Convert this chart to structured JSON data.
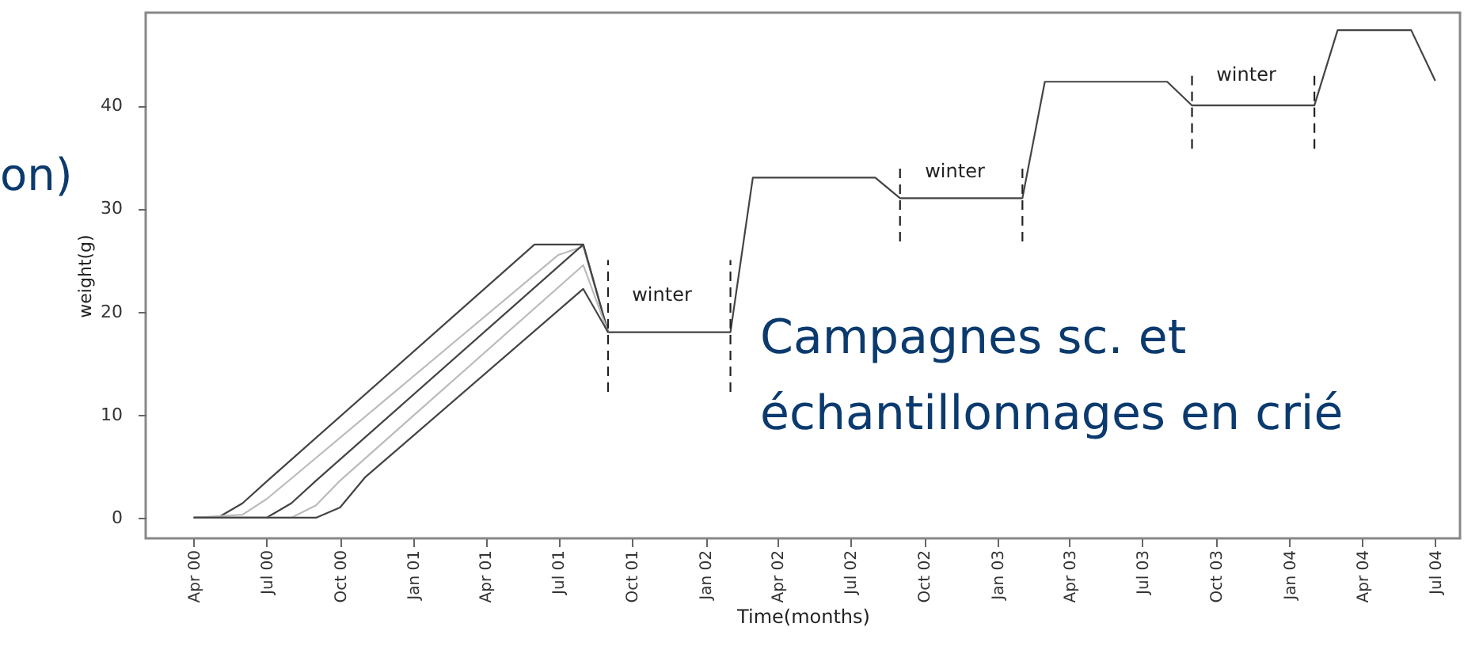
{
  "chart_data": {
    "type": "line",
    "xlabel": "Time(months)",
    "ylabel": "weight(g)",
    "xlim": [
      "2000-02",
      "2004-08"
    ],
    "ylim": [
      -2,
      49
    ],
    "yticks": [
      0,
      10,
      20,
      30,
      40
    ],
    "xticks": [
      {
        "value": "2000-04",
        "label": "Apr 00"
      },
      {
        "value": "2000-07",
        "label": "Jul 00"
      },
      {
        "value": "2000-10",
        "label": "Oct 00"
      },
      {
        "value": "2001-01",
        "label": "Jan 01"
      },
      {
        "value": "2001-04",
        "label": "Apr 01"
      },
      {
        "value": "2001-07",
        "label": "Jul 01"
      },
      {
        "value": "2001-10",
        "label": "Oct 01"
      },
      {
        "value": "2002-01",
        "label": "Jan 02"
      },
      {
        "value": "2002-04",
        "label": "Apr 02"
      },
      {
        "value": "2002-07",
        "label": "Jul 02"
      },
      {
        "value": "2002-10",
        "label": "Oct 02"
      },
      {
        "value": "2003-01",
        "label": "Jan 03"
      },
      {
        "value": "2003-04",
        "label": "Apr 03"
      },
      {
        "value": "2003-07",
        "label": "Jul 03"
      },
      {
        "value": "2003-10",
        "label": "Oct 03"
      },
      {
        "value": "2004-01",
        "label": "Jan 04"
      },
      {
        "value": "2004-04",
        "label": "Apr 04"
      },
      {
        "value": "2004-07",
        "label": "Jul 04"
      }
    ],
    "grid": false,
    "marker": "none",
    "series": [
      {
        "color": "#444444",
        "x": [
          "2000-04",
          "2000-05",
          "2000-06",
          "2000-07",
          "2001-06",
          "2001-08",
          "2001-09"
        ],
        "values": [
          0,
          0,
          1.4,
          3.5,
          26.5,
          26.5,
          18
        ]
      },
      {
        "color": "#bbbbbb",
        "x": [
          "2000-04",
          "2000-06",
          "2000-07",
          "2000-08",
          "2001-07",
          "2001-08",
          "2001-09"
        ],
        "values": [
          0,
          0.3,
          1.8,
          3.8,
          25.5,
          26.3,
          18
        ]
      },
      {
        "color": "#444444",
        "x": [
          "2000-04",
          "2000-07",
          "2000-08",
          "2000-09",
          "2001-08",
          "2001-09",
          "2002-02",
          "2002-03",
          "2002-08",
          "2002-09",
          "2003-02",
          "2003-03",
          "2003-08",
          "2003-09",
          "2004-02",
          "2004-03",
          "2004-06",
          "2004-07"
        ],
        "values": [
          0,
          0,
          1.4,
          3.6,
          26.5,
          18,
          18,
          33,
          33,
          31,
          31,
          42.3,
          42.3,
          40,
          40,
          47.3,
          47.3,
          42.4
        ]
      },
      {
        "color": "#bbbbbb",
        "x": [
          "2000-04",
          "2000-08",
          "2000-09",
          "2000-10",
          "2001-08",
          "2001-09"
        ],
        "values": [
          0,
          0,
          1.2,
          3.6,
          24.5,
          18
        ]
      },
      {
        "color": "#444444",
        "x": [
          "2000-04",
          "2000-09",
          "2000-10",
          "2000-11",
          "2001-08",
          "2001-09"
        ],
        "values": [
          0,
          0,
          1,
          3.9,
          22.2,
          18
        ]
      },
      {
        "color": "#222222",
        "line_style": "dashed",
        "x": [
          "2001-09",
          "2001-09"
        ],
        "values": [
          12.2,
          25
        ]
      },
      {
        "color": "#222222",
        "line_style": "dashed",
        "x": [
          "2002-02",
          "2002-02"
        ],
        "values": [
          12.2,
          25
        ]
      },
      {
        "color": "#222222",
        "line_style": "dashed",
        "x": [
          "2002-09",
          "2002-09"
        ],
        "values": [
          26.8,
          34
        ]
      },
      {
        "color": "#222222",
        "line_style": "dashed",
        "x": [
          "2003-02",
          "2003-02"
        ],
        "values": [
          26.8,
          34
        ]
      },
      {
        "color": "#222222",
        "line_style": "dashed",
        "x": [
          "2003-09",
          "2003-09"
        ],
        "values": [
          35.8,
          43
        ]
      },
      {
        "color": "#222222",
        "line_style": "dashed",
        "x": [
          "2004-02",
          "2004-02"
        ],
        "values": [
          35.8,
          43
        ]
      }
    ],
    "annotations": [
      "winter",
      "winter",
      "winter",
      "on)",
      "Campagnes sc. et\néchantillonnages en crié"
    ]
  }
}
